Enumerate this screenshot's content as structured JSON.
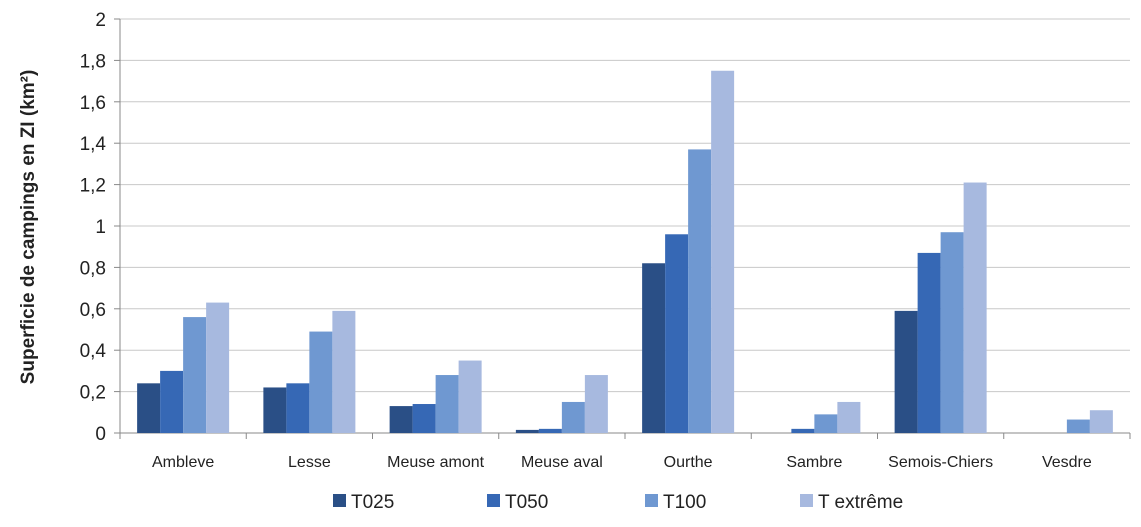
{
  "chart_data": {
    "type": "bar",
    "title": "",
    "xlabel": "",
    "ylabel": "Superficie de campings en ZI (km²)",
    "ylim": [
      0,
      2
    ],
    "yticks": [
      0,
      0.2,
      0.4,
      0.6,
      0.8,
      1,
      1.2,
      1.4,
      1.6,
      1.8,
      2
    ],
    "ytick_labels": [
      "0",
      "0,2",
      "0,4",
      "0,6",
      "0,8",
      "1",
      "1,2",
      "1,4",
      "1,6",
      "1,8",
      "2"
    ],
    "grid": true,
    "legend_position": "bottom",
    "categories": [
      "Ambleve",
      "Lesse",
      "Meuse amont",
      "Meuse aval",
      "Ourthe",
      "Sambre",
      "Semois-Chiers",
      "Vesdre"
    ],
    "series": [
      {
        "name": "T025",
        "color": "#2a4f86",
        "values": [
          0.24,
          0.22,
          0.13,
          0.015,
          0.82,
          0.0,
          0.59,
          0.0
        ]
      },
      {
        "name": "T050",
        "color": "#3668b5",
        "values": [
          0.3,
          0.24,
          0.14,
          0.02,
          0.96,
          0.02,
          0.87,
          0.0
        ]
      },
      {
        "name": "T100",
        "color": "#6f98d1",
        "values": [
          0.56,
          0.49,
          0.28,
          0.15,
          1.37,
          0.09,
          0.97,
          0.065
        ]
      },
      {
        "name": "T extrême",
        "color": "#a7b9df",
        "values": [
          0.63,
          0.59,
          0.35,
          0.28,
          1.75,
          0.15,
          1.21,
          0.11
        ]
      }
    ]
  }
}
